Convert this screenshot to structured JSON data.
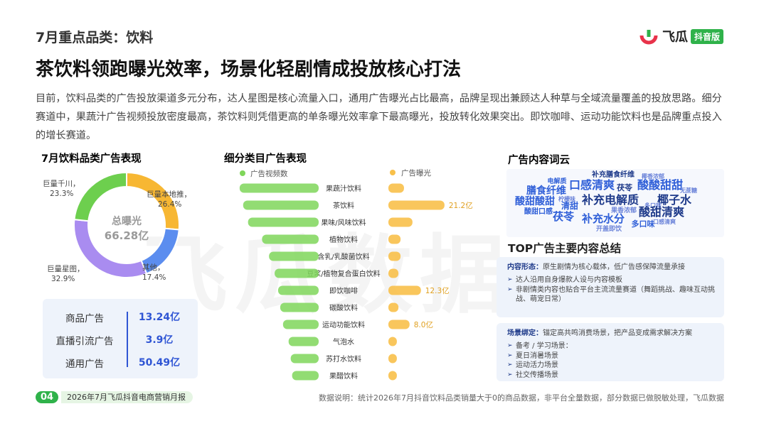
{
  "header": {
    "section": "7月重点品类：饮料",
    "title": "茶饮料领跑曝光效率，场景化轻剧情成投放核心打法",
    "logo": "飞瓜",
    "logo_badge": "抖音版"
  },
  "intro": "目前，饮料品类的广告投放渠道多元分布，达人星图是核心流量入口，通用广告曝光占比最高，品牌呈现出兼顾达人种草与全域流量覆盖的投放思路。细分赛道中，果蔬汁广告视频投放密度最高，茶饮料则凭借更高的单条曝光效率拿下最高曝光，投放转化效果突出。即饮咖啡、运动功能饮料也是品牌重点投入的增长赛道。",
  "chart_data": [
    {
      "type": "donut",
      "title": "7月饮料品类广告表现",
      "categories": [
        "巨量本地推，",
        "其他，",
        "巨量星图，",
        "巨量千川，"
      ],
      "values": [
        26.4,
        17.4,
        32.9,
        23.3
      ],
      "value_labels": [
        "26.4%",
        "17.4%",
        "32.9%",
        "23.3%"
      ],
      "colors": [
        "#f7b733",
        "#5b8def",
        "#a98cf0",
        "#6dcf4e"
      ],
      "center_title": "总曝光",
      "center_value": "66.28亿"
    },
    {
      "type": "butterfly",
      "title": "细分类目广告表现",
      "categories": [
        "果蔬汁饮料",
        "茶饮料",
        "果味/风味饮料",
        "植物饮料",
        "含乳/乳酸菌饮料",
        "豆浆/植物复合蛋白饮料",
        "即饮咖啡",
        "碳酸饮料",
        "运动功能饮料",
        "气泡水",
        "苏打水饮料",
        "果醋饮料"
      ],
      "series": [
        {
          "name": "广告视频数",
          "color": "#7fd65a",
          "values": [
            113,
            108,
            101,
            81,
            71,
            63,
            58,
            55,
            51,
            43,
            40,
            38
          ]
        },
        {
          "name": "广告曝光",
          "color": "#f8c04a",
          "axis": "x2",
          "values": [
            5.9,
            21.2,
            9.1,
            4.6,
            4.6,
            3.8,
            12.3,
            3.8,
            8.0,
            3.2,
            3.2,
            3.2
          ],
          "value_labels": [
            null,
            "21.2亿",
            null,
            null,
            null,
            null,
            "12.3亿",
            null,
            "8.0亿",
            null,
            null,
            null
          ]
        }
      ],
      "xlim": [
        0,
        120
      ],
      "x2lim": [
        0,
        25
      ]
    }
  ],
  "stats_table": {
    "rows": [
      [
        "商品广告",
        "13.24亿"
      ],
      [
        "直播引流广告",
        "3.9亿"
      ],
      [
        "通用广告",
        "50.49亿"
      ]
    ]
  },
  "word_cloud": {
    "title": "广告内容词云",
    "words": [
      "补充膳食纤维",
      "椰香浓郁",
      "电解质",
      "膳食纤维",
      "口感清爽",
      "茯苓",
      "酸酸甜甜",
      "无蔗糖",
      "柠檬味",
      "酸甜酸甜",
      "补充电解质",
      "椰子水",
      "清甜",
      "多口味",
      "酸甜口感",
      "果香浓郁",
      "酸甜清爽",
      "茯苓",
      "补充水分",
      "多口味",
      "开盖即饮",
      "口感清爽"
    ]
  },
  "summary": {
    "title": "TOP广告主要内容总结",
    "sections": [
      {
        "label": "内容形态：",
        "text": "原生剧情为核心载体，低广告感保障流量承接",
        "bullets": [
          "达人沿用自身爆款人设与内容模板",
          "非剧情类内容也贴合平台主流流量赛道（舞蹈挑战、趣味互动挑战、萌宠日常）"
        ]
      },
      {
        "label": "场景绑定：",
        "text": "锚定高共鸣消费场景，把产品变成需求解决方案",
        "bullets": [
          "备考 / 学习场景：",
          "夏日消暑场景",
          "运动活力场景",
          "社交传播场景"
        ]
      }
    ]
  },
  "watermark": "飞瓜数据",
  "footer": {
    "page": "04",
    "report": "2026年7月飞瓜抖音电商营销月报",
    "note": "数据说明：统计2026年7月抖音饮料品类销量大于0的商品数据，非平台全量数据，部分数据已做脱敏处理，飞瓜数据"
  }
}
